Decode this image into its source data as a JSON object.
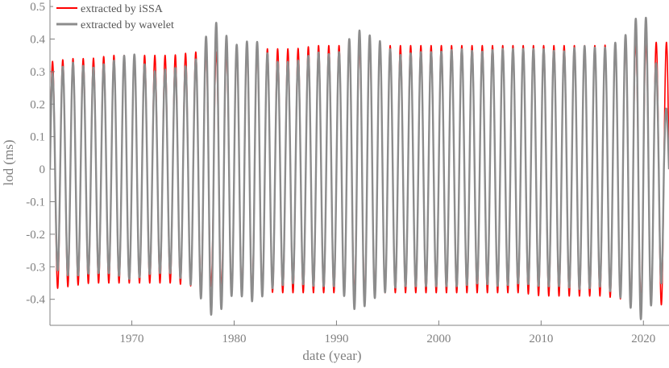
{
  "chart_data": {
    "type": "line",
    "title": "",
    "xlabel": "date (year)",
    "ylabel": "lod (ms)",
    "xlim": [
      1962,
      2022.5
    ],
    "ylim": [
      -0.48,
      0.52
    ],
    "x_ticks": [
      1970,
      1980,
      1990,
      2000,
      2010,
      2020
    ],
    "y_ticks": [
      -0.4,
      -0.3,
      -0.2,
      -0.1,
      0,
      0.1,
      0.2,
      0.3,
      0.4,
      0.5
    ],
    "y_tick_labels": [
      "-0.4",
      "-0.3",
      "-0.2",
      "-0.1",
      "0",
      "0.1",
      "0.2",
      "0.3",
      "0.4",
      "0.5"
    ],
    "grid": false,
    "legend_position": "top-left",
    "period_years": 1.0,
    "series": [
      {
        "name": "extracted by iSSA",
        "color": "#ff0000",
        "phase_year": 1962.25,
        "envelope": {
          "years": [
            1962,
            1964,
            1966,
            1968,
            1970,
            1972,
            1974,
            1976,
            1978,
            1980,
            1982,
            1984,
            1986,
            1988,
            1990,
            1992,
            1994,
            1996,
            1998,
            2000,
            2002,
            2004,
            2006,
            2008,
            2010,
            2012,
            2014,
            2016,
            2018,
            2020,
            2022.5
          ],
          "max": [
            0.33,
            0.34,
            0.34,
            0.35,
            0.35,
            0.35,
            0.35,
            0.36,
            0.36,
            0.36,
            0.37,
            0.37,
            0.37,
            0.38,
            0.38,
            0.38,
            0.38,
            0.38,
            0.38,
            0.38,
            0.38,
            0.38,
            0.38,
            0.38,
            0.38,
            0.38,
            0.38,
            0.38,
            0.39,
            0.39,
            0.39
          ],
          "min": [
            -0.37,
            -0.36,
            -0.35,
            -0.35,
            -0.35,
            -0.35,
            -0.35,
            -0.36,
            -0.36,
            -0.37,
            -0.37,
            -0.38,
            -0.38,
            -0.38,
            -0.38,
            -0.38,
            -0.38,
            -0.38,
            -0.38,
            -0.38,
            -0.38,
            -0.38,
            -0.38,
            -0.38,
            -0.39,
            -0.39,
            -0.39,
            -0.39,
            -0.4,
            -0.41,
            -0.42
          ]
        }
      },
      {
        "name": "extracted by wavelet",
        "color": "#8c8c8c",
        "phase_year": 1962.25,
        "envelope": {
          "years": [
            1962,
            1964,
            1966,
            1968,
            1970,
            1972,
            1974,
            1976,
            1978,
            1980,
            1982,
            1984,
            1986,
            1988,
            1990,
            1992,
            1994,
            1996,
            1998,
            2000,
            2002,
            2004,
            2006,
            2008,
            2010,
            2012,
            2014,
            2016,
            2018,
            2020,
            2022.5
          ],
          "max": [
            0.29,
            0.33,
            0.31,
            0.33,
            0.36,
            0.3,
            0.31,
            0.32,
            0.46,
            0.38,
            0.4,
            0.33,
            0.33,
            0.36,
            0.35,
            0.43,
            0.4,
            0.35,
            0.36,
            0.36,
            0.37,
            0.36,
            0.37,
            0.37,
            0.37,
            0.36,
            0.38,
            0.37,
            0.4,
            0.5,
            0.15
          ],
          "min": [
            -0.3,
            -0.33,
            -0.32,
            -0.32,
            -0.34,
            -0.32,
            -0.32,
            -0.36,
            -0.46,
            -0.38,
            -0.41,
            -0.36,
            -0.35,
            -0.36,
            -0.36,
            -0.44,
            -0.39,
            -0.36,
            -0.36,
            -0.36,
            -0.36,
            -0.35,
            -0.36,
            -0.35,
            -0.36,
            -0.36,
            -0.37,
            -0.36,
            -0.4,
            -0.47,
            -0.3
          ]
        }
      }
    ]
  }
}
